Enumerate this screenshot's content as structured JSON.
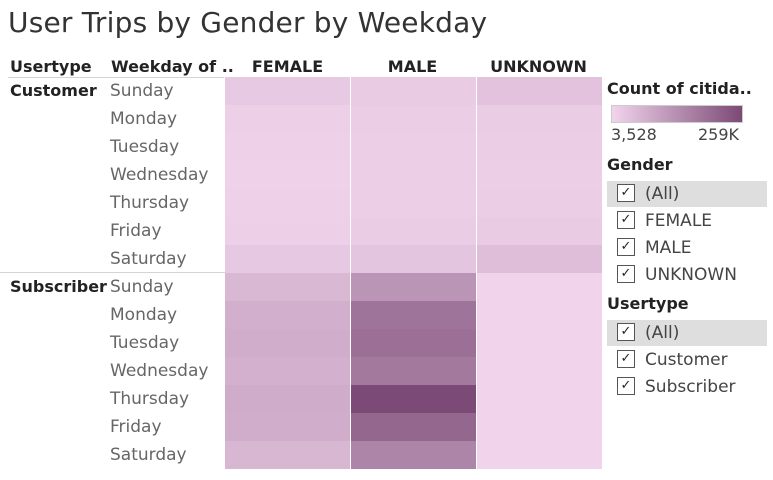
{
  "title": "User Trips by Gender by Weekday",
  "headers": {
    "row1": "Usertype",
    "row2": "Weekday of ..",
    "columns": [
      "FEMALE",
      "MALE",
      "UNKNOWN"
    ]
  },
  "chart_data": {
    "type": "heatmap",
    "title": "User Trips by Gender by Weekday",
    "columns": [
      "FEMALE",
      "MALE",
      "UNKNOWN"
    ],
    "row_groups": [
      {
        "usertype": "Customer",
        "weekdays": [
          "Sunday",
          "Monday",
          "Tuesday",
          "Wednesday",
          "Thursday",
          "Friday",
          "Saturday"
        ],
        "values": [
          [
            24000,
            20000,
            36000
          ],
          [
            12000,
            16000,
            18000
          ],
          [
            10000,
            14000,
            16000
          ],
          [
            8000,
            14000,
            15000
          ],
          [
            10000,
            15000,
            17000
          ],
          [
            12000,
            18000,
            20000
          ],
          [
            26000,
            32000,
            44000
          ]
        ]
      },
      {
        "usertype": "Subscriber",
        "weekdays": [
          "Sunday",
          "Monday",
          "Tuesday",
          "Wednesday",
          "Thursday",
          "Friday",
          "Saturday"
        ],
        "values": [
          [
            55000,
            120000,
            4000
          ],
          [
            70000,
            182000,
            4000
          ],
          [
            74000,
            190000,
            4000
          ],
          [
            68000,
            172000,
            4000
          ],
          [
            78000,
            259000,
            4000
          ],
          [
            76000,
            205000,
            4000
          ],
          [
            58000,
            150000,
            4000
          ]
        ]
      }
    ],
    "color_legend": {
      "title": "Count of citida..",
      "min": 3528,
      "max": 259000,
      "min_label": "3,528",
      "max_label": "259K",
      "min_color": "#f1d4ec",
      "max_color": "#7b4a76"
    }
  },
  "filters": {
    "gender": {
      "title": "Gender",
      "items": [
        {
          "label": "(All)",
          "checked": true
        },
        {
          "label": "FEMALE",
          "checked": true
        },
        {
          "label": "MALE",
          "checked": true
        },
        {
          "label": "UNKNOWN",
          "checked": true
        }
      ]
    },
    "usertype": {
      "title": "Usertype",
      "items": [
        {
          "label": "(All)",
          "checked": true
        },
        {
          "label": "Customer",
          "checked": true
        },
        {
          "label": "Subscriber",
          "checked": true
        }
      ]
    }
  }
}
